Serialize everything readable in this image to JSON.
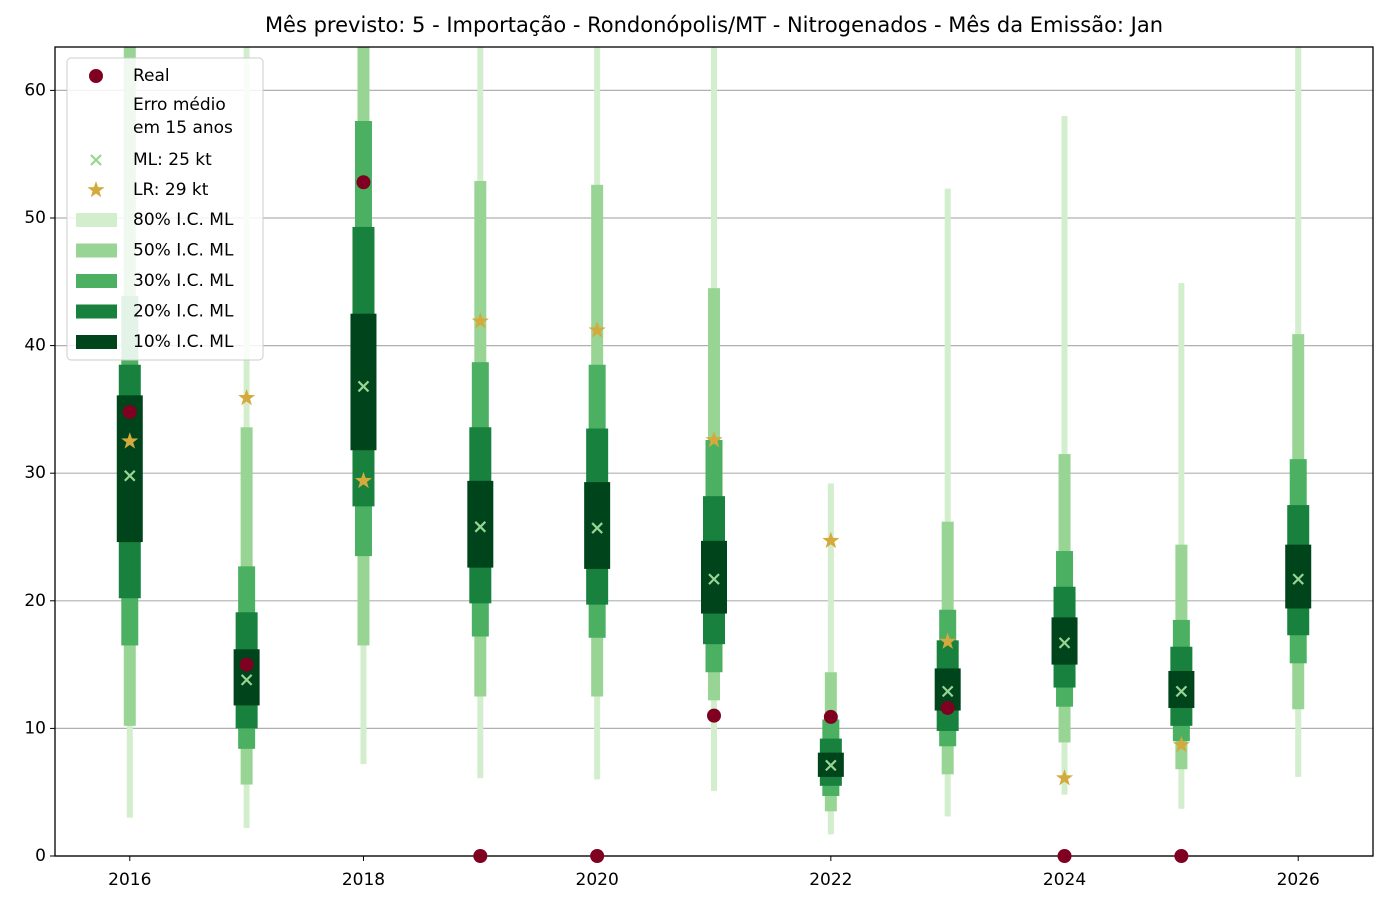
{
  "chart_data": {
    "type": "interval",
    "title": "Mês previsto: 5 - Importação - Rondonópolis/MT - Nitrogenados - Mês da Emissão: Jan",
    "x": [
      2016,
      2017,
      2018,
      2019,
      2020,
      2021,
      2022,
      2023,
      2024,
      2025,
      2026
    ],
    "xlim": [
      2015.36,
      2026.64
    ],
    "xticks": [
      2016,
      2018,
      2020,
      2022,
      2024,
      2026
    ],
    "ylim": [
      0,
      63.4
    ],
    "yticks": [
      0,
      10,
      20,
      30,
      40,
      50,
      60
    ],
    "grid": true,
    "legend": "upper left",
    "legend_note": [
      "Erro médio",
      "em 15 anos"
    ],
    "intervals": [
      {
        "name": "80% I.C. ML",
        "color": "#d3eecd",
        "low": [
          3.0,
          2.2,
          7.2,
          6.1,
          6.0,
          5.1,
          1.7,
          3.1,
          4.8,
          3.7,
          6.2
        ],
        "high": [
          70,
          70,
          70,
          70,
          70,
          70,
          29.2,
          52.3,
          58.0,
          44.9,
          70
        ]
      },
      {
        "name": "50% I.C. ML",
        "color": "#98d594",
        "low": [
          10.2,
          5.6,
          16.5,
          12.5,
          12.5,
          12.2,
          3.5,
          6.4,
          8.9,
          6.8,
          11.5
        ],
        "high": [
          70,
          33.6,
          70,
          52.9,
          52.6,
          44.5,
          14.4,
          26.2,
          31.5,
          24.4,
          40.9
        ]
      },
      {
        "name": "30% I.C. ML",
        "color": "#4bb062",
        "low": [
          16.5,
          8.4,
          23.5,
          17.2,
          17.1,
          14.4,
          4.7,
          8.6,
          11.7,
          9.0,
          15.1
        ],
        "high": [
          43.9,
          22.7,
          57.6,
          38.7,
          38.5,
          32.6,
          10.7,
          19.3,
          23.9,
          18.5,
          31.1
        ]
      },
      {
        "name": "20% I.C. ML",
        "color": "#17813d",
        "low": [
          20.2,
          10.0,
          27.4,
          19.8,
          19.7,
          16.6,
          5.5,
          9.8,
          13.2,
          10.2,
          17.3
        ],
        "high": [
          38.5,
          19.1,
          49.3,
          33.6,
          33.5,
          28.2,
          9.2,
          16.9,
          21.1,
          16.4,
          27.5
        ]
      },
      {
        "name": "10% I.C. ML",
        "color": "#00441b",
        "low": [
          24.6,
          11.8,
          31.8,
          22.6,
          22.5,
          19.0,
          6.2,
          11.4,
          15.0,
          11.6,
          19.4
        ],
        "high": [
          36.1,
          16.2,
          42.5,
          29.4,
          29.3,
          24.7,
          8.1,
          14.7,
          18.7,
          14.5,
          24.4
        ]
      }
    ],
    "series": [
      {
        "name": "Real",
        "color": "#7f0020",
        "marker": "circle",
        "values": [
          34.8,
          15.0,
          52.8,
          0,
          0,
          11.0,
          10.9,
          11.6,
          0,
          0,
          null
        ]
      },
      {
        "name": "ML: 25 kt",
        "color": "#98d594",
        "marker": "x",
        "values": [
          29.8,
          13.8,
          36.8,
          25.8,
          25.7,
          21.7,
          7.1,
          12.9,
          16.7,
          12.9,
          21.7
        ]
      },
      {
        "name": "LR: 29 kt",
        "color": "#d4aa3c",
        "marker": "star",
        "values": [
          32.5,
          35.9,
          29.4,
          41.9,
          41.2,
          32.6,
          24.7,
          16.8,
          6.1,
          8.7,
          null
        ]
      }
    ]
  }
}
